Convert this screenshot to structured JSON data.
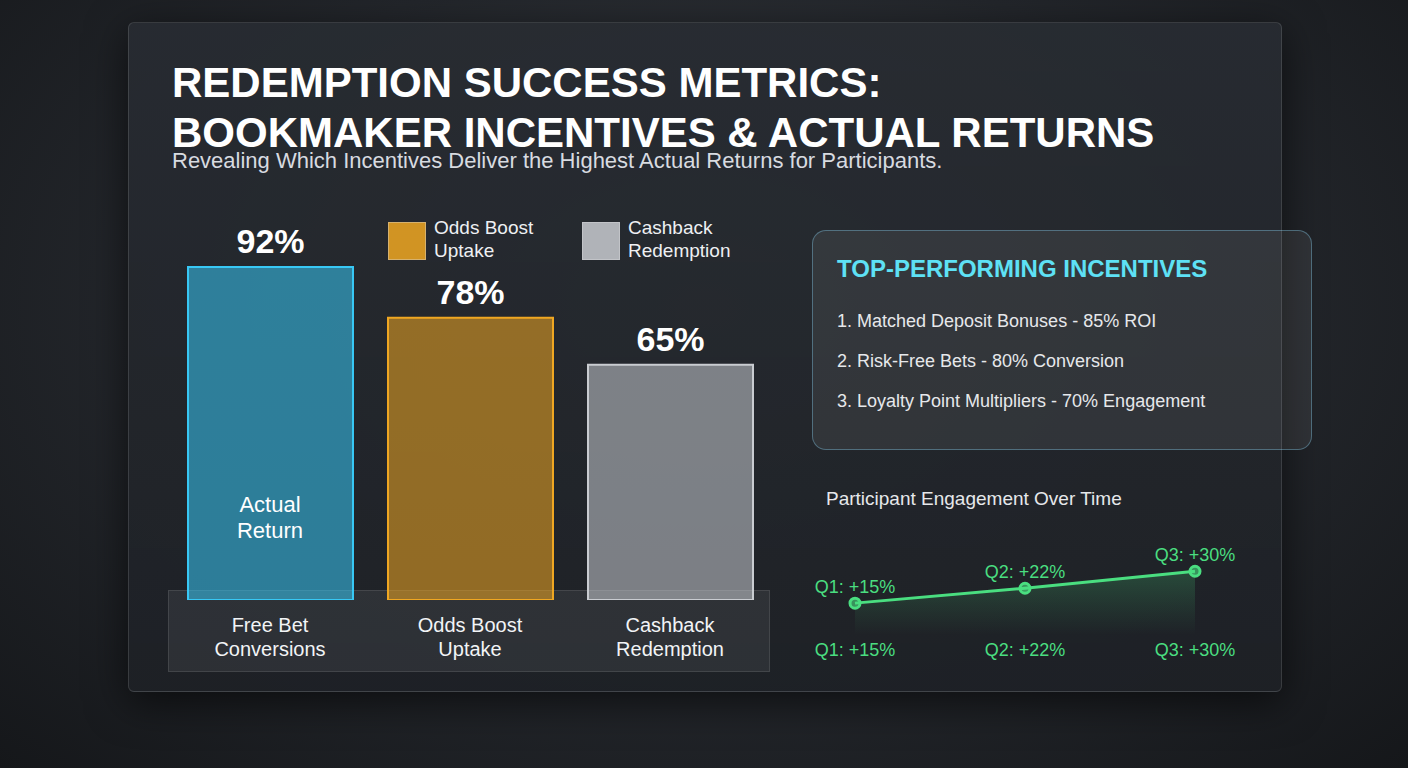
{
  "chart_data": [
    {
      "type": "bar",
      "title": "REDEMPTION SUCCESS METRICS:\nBOOKMAKER INCENTIVES & ACTUAL RETURNS",
      "subtitle": "Revealing Which Incentives Deliver the Highest Actual Returns for Participants.",
      "categories": [
        "Free Bet Conversions",
        "Odds Boost Uptake",
        "Cashback Redemption"
      ],
      "values": [
        92,
        78,
        65
      ],
      "value_labels": [
        "92%",
        "78%",
        "65%"
      ],
      "colors": [
        "#38c8f5",
        "#f0a722",
        "#c9ccd1"
      ],
      "ylim": [
        0,
        100
      ],
      "data_labels": true,
      "tick_labels": "x",
      "grid": false,
      "legend": "top",
      "legend_entries": [
        {
          "label": "Odds Boost Uptake",
          "color": "#f0a722"
        },
        {
          "label": "Cashback Redemption",
          "color": "#c9ccd1"
        }
      ],
      "annotations": [
        "Actual Return"
      ]
    },
    {
      "type": "line",
      "title": "Participant Engagement Over Time",
      "categories": [
        "Q1: +15%",
        "Q2: +22%",
        "Q3: +30%"
      ],
      "values": [
        15,
        22,
        30
      ],
      "value_labels": [
        "Q1: +15%",
        "Q2: +22%",
        "Q3: +30%"
      ],
      "color": "#4ade80",
      "ylim": [
        0,
        40
      ],
      "data_labels": true,
      "tick_labels": "x",
      "grid": false
    }
  ],
  "panel": {
    "title": "TOP-PERFORMING INCENTIVES",
    "items": [
      "1. Matched Deposit Bonuses - 85% ROI",
      "2. Risk-Free Bets - 80% Conversion",
      "3. Loyalty Point Multipliers - 70% Engagement"
    ]
  }
}
